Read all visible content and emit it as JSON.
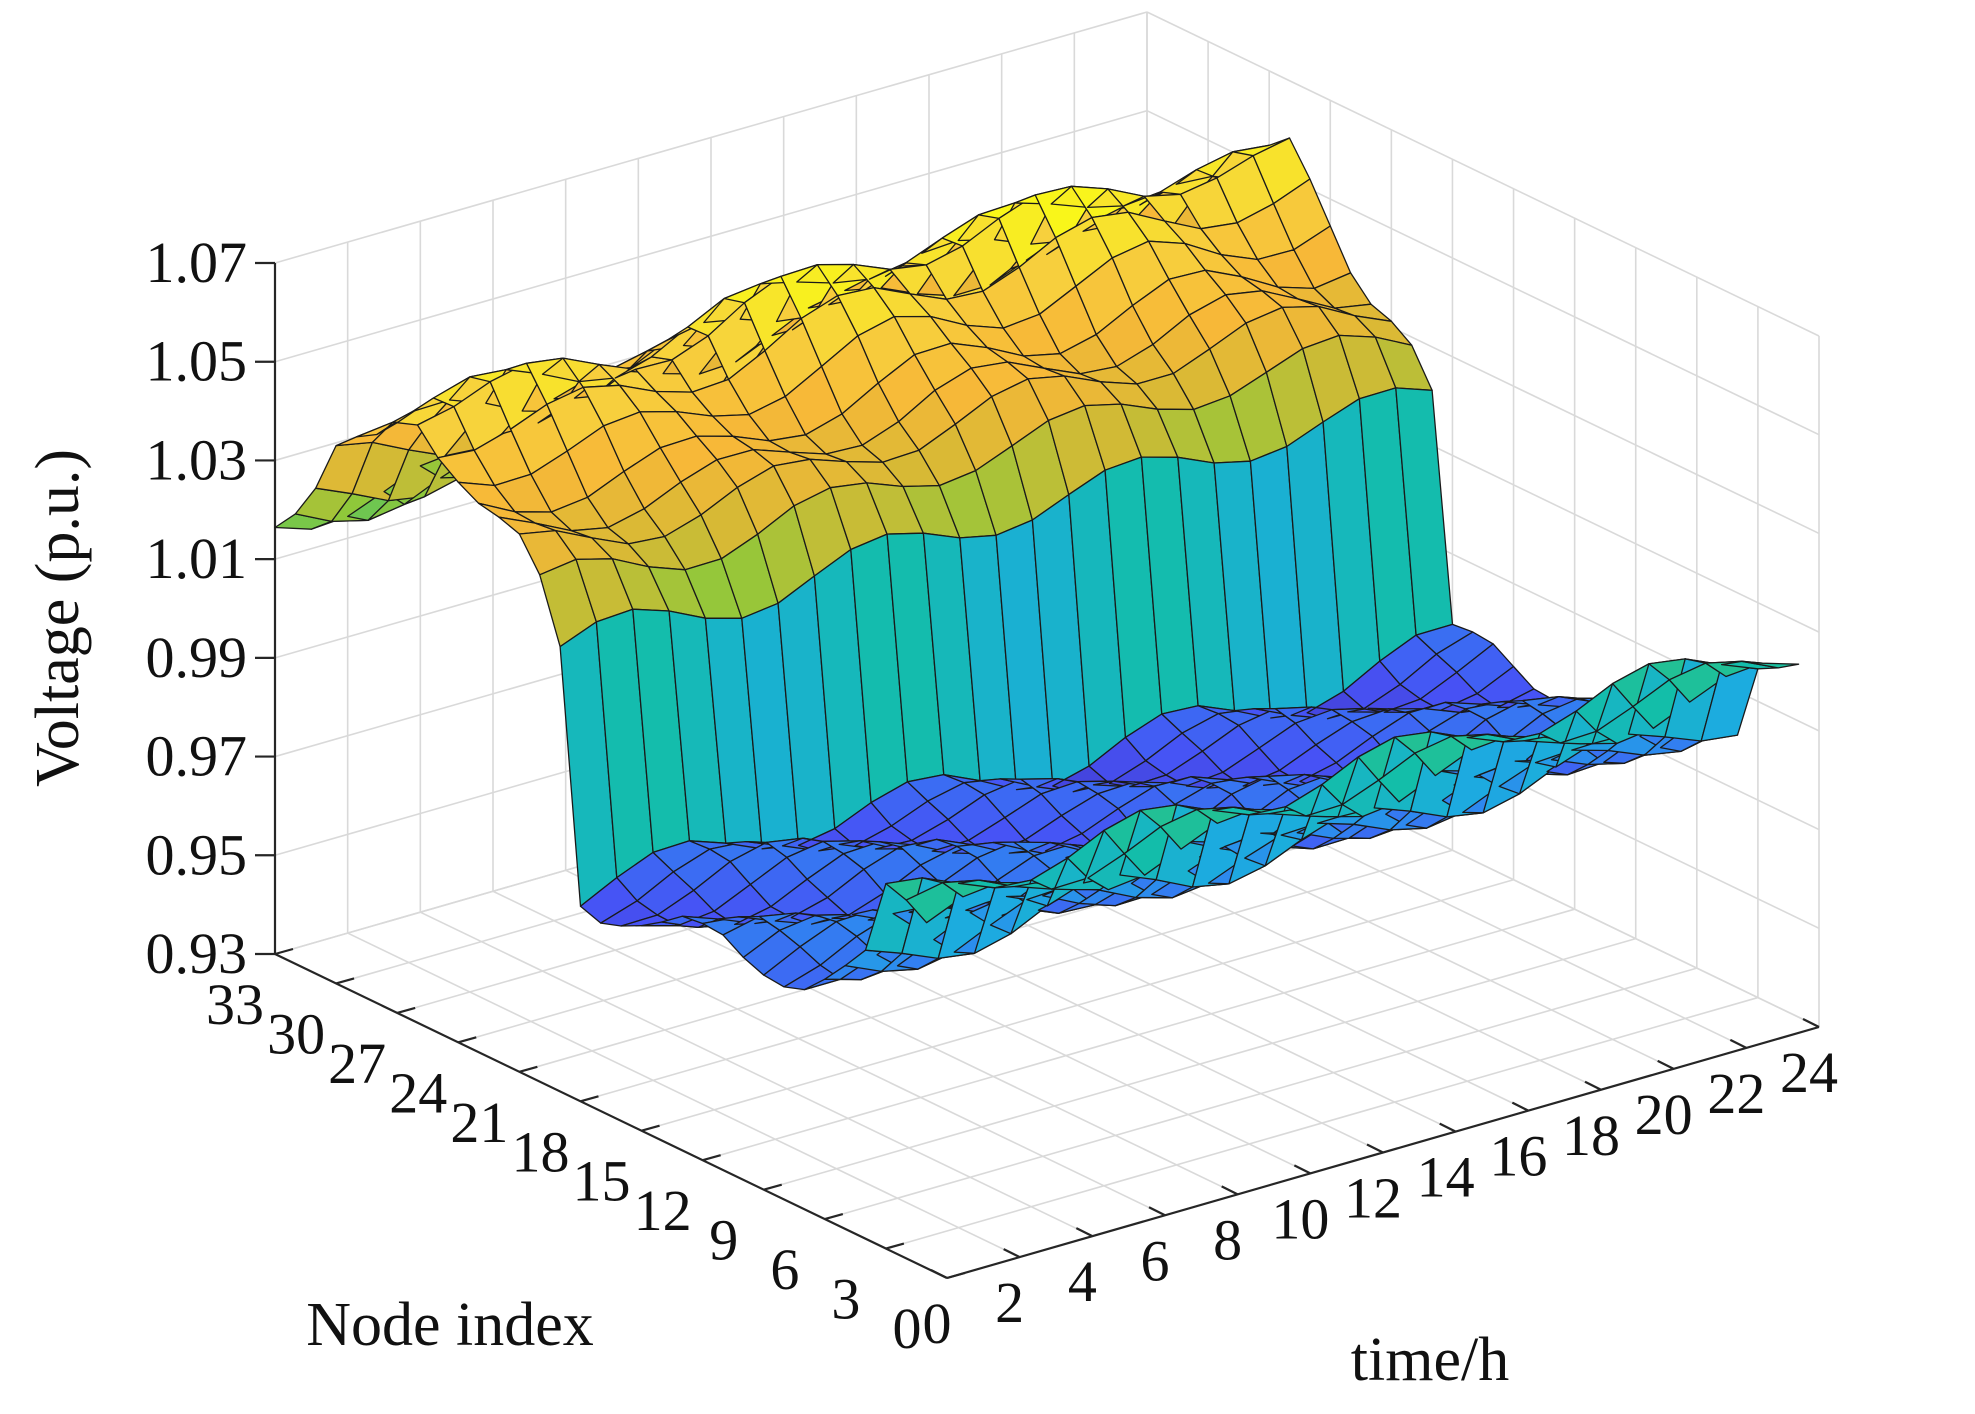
{
  "chart_data": {
    "type": "surface",
    "xlabel": "time/h",
    "ylabel": "Node index",
    "zlabel": "Voltage (p.u.)",
    "x_ticks": [
      "0",
      "2",
      "4",
      "6",
      "8",
      "10",
      "12",
      "14",
      "16",
      "18",
      "20",
      "22",
      "24"
    ],
    "y_ticks": [
      "0",
      "3",
      "6",
      "9",
      "12",
      "15",
      "18",
      "21",
      "24",
      "27",
      "30",
      "33"
    ],
    "z_ticks": [
      "0.93",
      "0.95",
      "0.97",
      "0.99",
      "1.01",
      "1.03",
      "1.05",
      "1.07"
    ],
    "xlim": [
      0,
      24
    ],
    "ylim": [
      0,
      33
    ],
    "zlim": [
      0.93,
      1.07
    ],
    "grid": true,
    "colormap": "parula",
    "colors": [
      "#3e26a8",
      "#4752f5",
      "#2f86f0",
      "#1cacdf",
      "#13bea8",
      "#3ec471",
      "#8fc83a",
      "#d6b935",
      "#f7b838",
      "#f7d13d",
      "#f9fb15"
    ],
    "time_h": [
      0,
      1,
      2,
      3,
      4,
      5,
      6,
      7,
      8,
      9,
      10,
      11,
      12,
      13,
      14,
      15,
      16,
      17,
      18,
      19,
      20,
      21,
      22,
      23,
      24
    ],
    "nodes": [
      1,
      2,
      3,
      4,
      5,
      6,
      7,
      8,
      9,
      10,
      11,
      12,
      13,
      14,
      15,
      16,
      17,
      18,
      19,
      20,
      21,
      22,
      23,
      24,
      25,
      26,
      27,
      28,
      29,
      30,
      31,
      32,
      33
    ],
    "node_voltage_profile_at_t0": [
      1.0,
      1.0,
      1.0,
      0.985,
      0.982,
      0.98,
      0.978,
      0.977,
      0.976,
      0.975,
      0.975,
      0.974,
      0.974,
      0.973,
      0.973,
      0.973,
      0.972,
      0.972,
      1.02,
      1.03,
      1.035,
      1.037,
      1.04,
      1.045,
      1.05,
      1.055,
      1.052,
      1.045,
      1.04,
      1.035,
      1.025,
      1.02,
      1.018
    ],
    "time_scaling": [
      1.0,
      0.99,
      0.98,
      0.97,
      0.965,
      0.96,
      0.96,
      0.97,
      0.98,
      1.0,
      1.02,
      1.04,
      1.06,
      1.06,
      1.05,
      1.04,
      1.04,
      1.05,
      1.06,
      1.07,
      1.06,
      1.04,
      1.02,
      1.0,
      0.99
    ]
  }
}
